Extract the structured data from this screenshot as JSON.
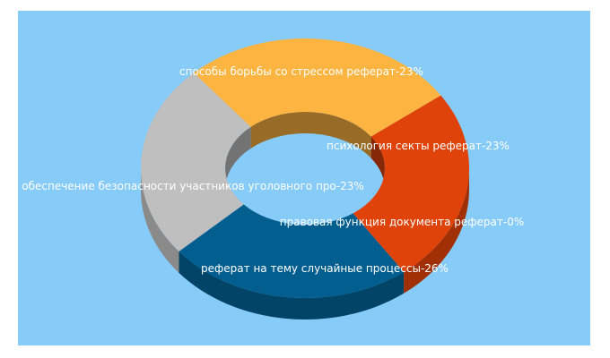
{
  "chart_data": {
    "type": "pie",
    "variant": "3d-donut",
    "title": "",
    "background_color": "#87CBF9",
    "label_color": "#FFFFFF",
    "slices": [
      {
        "name": "способы борьбы со стрессом реферат",
        "value": 23,
        "color": "#025E8F",
        "label": "способы борьбы со стрессом реферат-23%"
      },
      {
        "name": "психология секты реферат",
        "value": 23,
        "color": "#BFBFBF",
        "label": "психология секты реферат-23%"
      },
      {
        "name": "правовая функция документа реферат",
        "value": 0,
        "color": "#F5B630",
        "label": "правовая функция документа реферат-0%"
      },
      {
        "name": "реферат на тему случайные процессы",
        "value": 26,
        "color": "#FDB440",
        "label": "реферат на тему случайные процессы-26%"
      },
      {
        "name": "обеспечение безопасности участников уголовного про",
        "value": 23,
        "color": "#DF4309",
        "label": "обеспечение безопасности участников уголовного про-23%"
      }
    ]
  }
}
